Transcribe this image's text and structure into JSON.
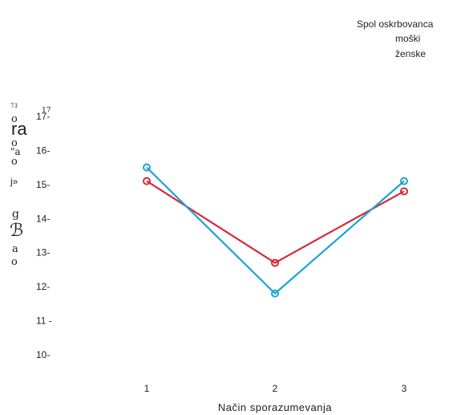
{
  "chart_data": {
    "type": "line",
    "xlabel": "Način sporazumevanja",
    "ylabel": "",
    "categories": [
      "1",
      "2",
      "3"
    ],
    "ylim": [
      10,
      17
    ],
    "yticks": [
      10,
      11,
      12,
      13,
      14,
      15,
      16,
      17
    ],
    "ytick_labels": [
      "10-",
      "11 -",
      "12-",
      "13-",
      "14-",
      "15-",
      "16-",
      "17-"
    ],
    "legend": {
      "title": "Spol oskrbovanca",
      "position": "top-right",
      "entries": [
        "moški",
        "ženske"
      ]
    },
    "series": [
      {
        "name": "moški",
        "color": "#1aa3d4",
        "values": [
          15.5,
          11.8,
          15.1
        ]
      },
      {
        "name": "ženske",
        "color": "#d62a3a",
        "values": [
          15.1,
          12.7,
          14.8
        ]
      }
    ],
    "grid": false,
    "ylabel_fragments": [
      "73",
      "17",
      "o",
      "ra",
      "o",
      "\"a",
      "o",
      "j»",
      "g",
      "ℬ",
      "a",
      "o"
    ]
  }
}
